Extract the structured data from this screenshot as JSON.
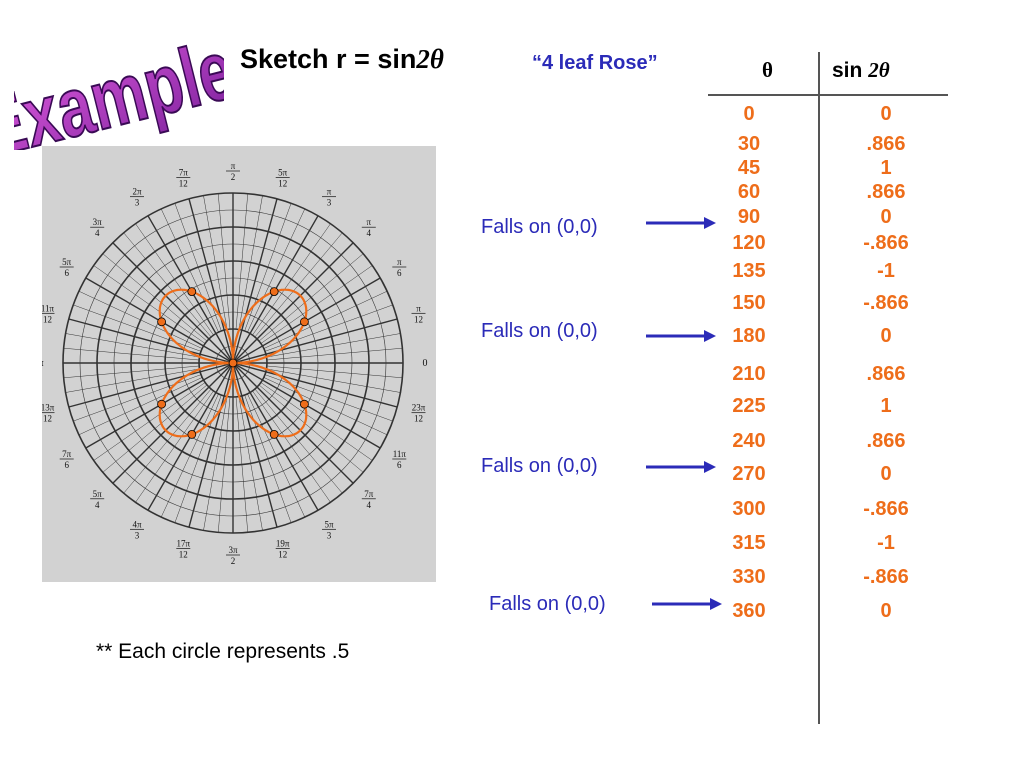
{
  "slide": {
    "example_label": "Example:",
    "heading_prefix": "Sketch r = sin",
    "heading_arg": "2θ",
    "subtitle": "“4 leaf Rose”",
    "footnote": "** Each circle represents .5"
  },
  "table": {
    "col_theta": "θ",
    "col_sin_prefix": "sin ",
    "col_sin_arg": "2θ",
    "rows": [
      {
        "theta": "0",
        "sin": "0"
      },
      {
        "theta": "30",
        "sin": ".866"
      },
      {
        "theta": "45",
        "sin": "1"
      },
      {
        "theta": "60",
        "sin": ".866"
      },
      {
        "theta": "90",
        "sin": "0"
      },
      {
        "theta": "120",
        "sin": "-.866"
      },
      {
        "theta": "135",
        "sin": "-1"
      },
      {
        "theta": "150",
        "sin": "-.866"
      },
      {
        "theta": "180",
        "sin": "0"
      },
      {
        "theta": "210",
        "sin": ".866"
      },
      {
        "theta": "225",
        "sin": "1"
      },
      {
        "theta": "240",
        "sin": ".866"
      },
      {
        "theta": "270",
        "sin": "0"
      },
      {
        "theta": "300",
        "sin": "-.866"
      },
      {
        "theta": "315",
        "sin": "-1"
      },
      {
        "theta": "330",
        "sin": "-.866"
      },
      {
        "theta": "360",
        "sin": "0"
      }
    ]
  },
  "annotations": [
    {
      "text": "Falls on (0,0)"
    },
    {
      "text": "Falls on (0,0)"
    },
    {
      "text": "Falls on (0,0)"
    },
    {
      "text": "Falls on (0,0)"
    }
  ],
  "polar_graph": {
    "angle_labels": [
      {
        "num": "π",
        "den": "2"
      },
      {
        "num": "5π",
        "den": "12"
      },
      {
        "num": "π",
        "den": "3"
      },
      {
        "num": "π",
        "den": "4"
      },
      {
        "num": "π",
        "den": "6"
      },
      {
        "num": "π",
        "den": "12"
      },
      {
        "num": "0",
        "den": ""
      },
      {
        "num": "23π",
        "den": "12"
      },
      {
        "num": "11π",
        "den": "6"
      },
      {
        "num": "7π",
        "den": "4"
      },
      {
        "num": "5π",
        "den": "3"
      },
      {
        "num": "19π",
        "den": "12"
      },
      {
        "num": "3π",
        "den": "2"
      },
      {
        "num": "17π",
        "den": "12"
      },
      {
        "num": "4π",
        "den": "3"
      },
      {
        "num": "5π",
        "den": "4"
      },
      {
        "num": "7π",
        "den": "6"
      },
      {
        "num": "13π",
        "den": "12"
      },
      {
        "num": "π",
        "den": ""
      },
      {
        "num": "11π",
        "den": "12"
      },
      {
        "num": "5π",
        "den": "6"
      },
      {
        "num": "3π",
        "den": "4"
      },
      {
        "num": "2π",
        "den": "3"
      },
      {
        "num": "7π",
        "den": "12"
      }
    ],
    "rose_equation": "r = sin 2θ",
    "curve_color": "#ee6d1a",
    "background_color": "#d2d2d2"
  }
}
